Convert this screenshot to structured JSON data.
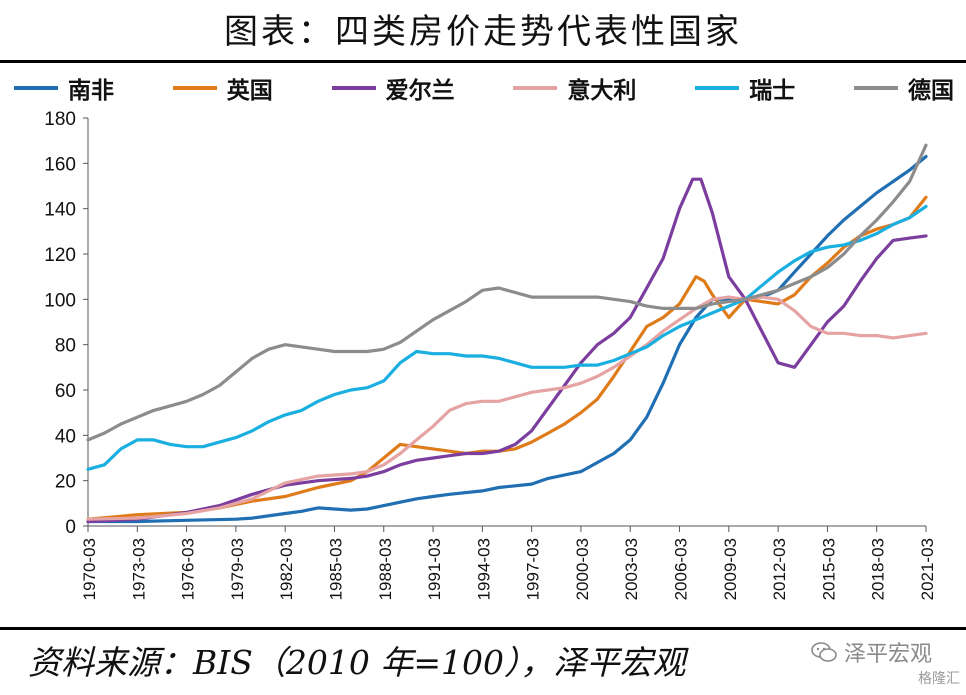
{
  "title": "图表：四类房价走势代表性国家",
  "source": "资料来源：BIS（2010 年=100），泽平宏观",
  "watermark": {
    "text": "泽平宏观",
    "icon": "wechat-icon",
    "badge": "格隆汇"
  },
  "chart_data": {
    "type": "line",
    "title": "图表：四类房价走势代表性国家",
    "xlabel": "",
    "ylabel": "",
    "xlim": [
      1970.0,
      2021.0
    ],
    "ylim": [
      0,
      180
    ],
    "yticks": [
      0,
      20,
      40,
      60,
      80,
      100,
      120,
      140,
      160,
      180
    ],
    "xtick_labels": [
      "1970-03",
      "1973-03",
      "1976-03",
      "1979-03",
      "1982-03",
      "1985-03",
      "1988-03",
      "1991-03",
      "1994-03",
      "1997-03",
      "2000-03",
      "2003-03",
      "2006-03",
      "2009-03",
      "2012-03",
      "2015-03",
      "2018-03",
      "2021-03"
    ],
    "legend_position": "top",
    "series": [
      {
        "name": "南非",
        "color": "#1f6fb2",
        "points": [
          [
            1970,
            2
          ],
          [
            1973,
            2
          ],
          [
            1976,
            2.5
          ],
          [
            1979,
            3
          ],
          [
            1980,
            3.5
          ],
          [
            1982,
            5.5
          ],
          [
            1983,
            6.5
          ],
          [
            1984,
            8
          ],
          [
            1985,
            7.5
          ],
          [
            1986,
            7
          ],
          [
            1987,
            7.5
          ],
          [
            1988,
            9
          ],
          [
            1990,
            12
          ],
          [
            1991,
            13
          ],
          [
            1992,
            14
          ],
          [
            1994,
            15.5
          ],
          [
            1995,
            17
          ],
          [
            1997,
            18.5
          ],
          [
            1998,
            21
          ],
          [
            2000,
            24
          ],
          [
            2001,
            28
          ],
          [
            2002,
            32
          ],
          [
            2003,
            38
          ],
          [
            2004,
            48
          ],
          [
            2005,
            63
          ],
          [
            2006,
            80
          ],
          [
            2007,
            92
          ],
          [
            2008,
            100
          ],
          [
            2009,
            100
          ],
          [
            2010,
            100
          ],
          [
            2011,
            101
          ],
          [
            2012,
            104
          ],
          [
            2013,
            112
          ],
          [
            2014,
            120
          ],
          [
            2015,
            128
          ],
          [
            2016,
            135
          ],
          [
            2017,
            141
          ],
          [
            2018,
            147
          ],
          [
            2019,
            152
          ],
          [
            2020,
            157
          ],
          [
            2021,
            163
          ]
        ]
      },
      {
        "name": "英国",
        "color": "#e07b1a",
        "points": [
          [
            1970,
            3
          ],
          [
            1973,
            5
          ],
          [
            1976,
            6
          ],
          [
            1978,
            8
          ],
          [
            1980,
            11
          ],
          [
            1982,
            13
          ],
          [
            1983,
            15
          ],
          [
            1984,
            17
          ],
          [
            1986,
            20
          ],
          [
            1987,
            24
          ],
          [
            1988,
            30
          ],
          [
            1989,
            36
          ],
          [
            1990,
            35
          ],
          [
            1991,
            34
          ],
          [
            1992,
            33
          ],
          [
            1993,
            32
          ],
          [
            1994,
            33
          ],
          [
            1995,
            33
          ],
          [
            1996,
            34
          ],
          [
            1997,
            37
          ],
          [
            1998,
            41
          ],
          [
            1999,
            45
          ],
          [
            2000,
            50
          ],
          [
            2001,
            56
          ],
          [
            2002,
            66
          ],
          [
            2003,
            77
          ],
          [
            2004,
            88
          ],
          [
            2005,
            92
          ],
          [
            2006,
            98
          ],
          [
            2007,
            110
          ],
          [
            2007.5,
            108
          ],
          [
            2008,
            102
          ],
          [
            2009,
            92
          ],
          [
            2010,
            100
          ],
          [
            2011,
            99
          ],
          [
            2012,
            98
          ],
          [
            2013,
            102
          ],
          [
            2014,
            110
          ],
          [
            2015,
            116
          ],
          [
            2016,
            123
          ],
          [
            2017,
            128
          ],
          [
            2018,
            131
          ],
          [
            2019,
            133
          ],
          [
            2020,
            136
          ],
          [
            2021,
            145
          ]
        ]
      },
      {
        "name": "爱尔兰",
        "color": "#7b3d9e",
        "points": [
          [
            1970,
            2
          ],
          [
            1973,
            3
          ],
          [
            1976,
            6
          ],
          [
            1978,
            9
          ],
          [
            1980,
            14
          ],
          [
            1982,
            18
          ],
          [
            1984,
            20
          ],
          [
            1986,
            21
          ],
          [
            1987,
            22
          ],
          [
            1988,
            24
          ],
          [
            1989,
            27
          ],
          [
            1990,
            29
          ],
          [
            1991,
            30
          ],
          [
            1992,
            31
          ],
          [
            1993,
            32
          ],
          [
            1994,
            32
          ],
          [
            1995,
            33
          ],
          [
            1996,
            36
          ],
          [
            1997,
            42
          ],
          [
            1998,
            52
          ],
          [
            1999,
            62
          ],
          [
            2000,
            72
          ],
          [
            2001,
            80
          ],
          [
            2002,
            85
          ],
          [
            2003,
            92
          ],
          [
            2004,
            105
          ],
          [
            2005,
            118
          ],
          [
            2006,
            140
          ],
          [
            2006.8,
            153
          ],
          [
            2007.3,
            153
          ],
          [
            2008,
            138
          ],
          [
            2009,
            110
          ],
          [
            2010,
            100
          ],
          [
            2011,
            86
          ],
          [
            2012,
            72
          ],
          [
            2013,
            70
          ],
          [
            2014,
            80
          ],
          [
            2015,
            90
          ],
          [
            2016,
            97
          ],
          [
            2017,
            108
          ],
          [
            2018,
            118
          ],
          [
            2019,
            126
          ],
          [
            2020,
            127
          ],
          [
            2021,
            128
          ]
        ]
      },
      {
        "name": "意大利",
        "color": "#e6a3a3",
        "points": [
          [
            1970,
            3
          ],
          [
            1973,
            3.5
          ],
          [
            1976,
            5.5
          ],
          [
            1978,
            8
          ],
          [
            1980,
            12
          ],
          [
            1982,
            19
          ],
          [
            1984,
            22
          ],
          [
            1986,
            23
          ],
          [
            1987,
            24
          ],
          [
            1988,
            27
          ],
          [
            1989,
            32
          ],
          [
            1990,
            38
          ],
          [
            1991,
            44
          ],
          [
            1992,
            51
          ],
          [
            1993,
            54
          ],
          [
            1994,
            55
          ],
          [
            1995,
            55
          ],
          [
            1996,
            57
          ],
          [
            1997,
            59
          ],
          [
            1998,
            60
          ],
          [
            1999,
            61
          ],
          [
            2000,
            63
          ],
          [
            2001,
            66
          ],
          [
            2002,
            70
          ],
          [
            2003,
            75
          ],
          [
            2004,
            80
          ],
          [
            2005,
            86
          ],
          [
            2006,
            91
          ],
          [
            2007,
            96
          ],
          [
            2008,
            100
          ],
          [
            2009,
            101
          ],
          [
            2010,
            100
          ],
          [
            2011,
            101
          ],
          [
            2012,
            100
          ],
          [
            2013,
            95
          ],
          [
            2014,
            88
          ],
          [
            2015,
            85
          ],
          [
            2016,
            85
          ],
          [
            2017,
            84
          ],
          [
            2018,
            84
          ],
          [
            2019,
            83
          ],
          [
            2020,
            84
          ],
          [
            2021,
            85
          ]
        ]
      },
      {
        "name": "瑞士",
        "color": "#19afe0",
        "points": [
          [
            1970,
            25
          ],
          [
            1971,
            27
          ],
          [
            1972,
            34
          ],
          [
            1973,
            38
          ],
          [
            1974,
            38
          ],
          [
            1975,
            36
          ],
          [
            1976,
            35
          ],
          [
            1977,
            35
          ],
          [
            1978,
            37
          ],
          [
            1979,
            39
          ],
          [
            1980,
            42
          ],
          [
            1981,
            46
          ],
          [
            1982,
            49
          ],
          [
            1983,
            51
          ],
          [
            1984,
            55
          ],
          [
            1985,
            58
          ],
          [
            1986,
            60
          ],
          [
            1987,
            61
          ],
          [
            1988,
            64
          ],
          [
            1989,
            72
          ],
          [
            1990,
            77
          ],
          [
            1991,
            76
          ],
          [
            1992,
            76
          ],
          [
            1993,
            75
          ],
          [
            1994,
            75
          ],
          [
            1995,
            74
          ],
          [
            1996,
            72
          ],
          [
            1997,
            70
          ],
          [
            1998,
            70
          ],
          [
            1999,
            70
          ],
          [
            2000,
            71
          ],
          [
            2001,
            71
          ],
          [
            2002,
            73
          ],
          [
            2003,
            76
          ],
          [
            2004,
            79
          ],
          [
            2005,
            84
          ],
          [
            2006,
            88
          ],
          [
            2007,
            91
          ],
          [
            2008,
            94
          ],
          [
            2009,
            97
          ],
          [
            2010,
            100
          ],
          [
            2011,
            106
          ],
          [
            2012,
            112
          ],
          [
            2013,
            117
          ],
          [
            2014,
            121
          ],
          [
            2015,
            123
          ],
          [
            2016,
            124
          ],
          [
            2017,
            126
          ],
          [
            2018,
            129
          ],
          [
            2019,
            133
          ],
          [
            2020,
            136
          ],
          [
            2021,
            141
          ]
        ]
      },
      {
        "name": "德国",
        "color": "#8c8c8c",
        "points": [
          [
            1970,
            38
          ],
          [
            1971,
            41
          ],
          [
            1972,
            45
          ],
          [
            1973,
            48
          ],
          [
            1974,
            51
          ],
          [
            1975,
            53
          ],
          [
            1976,
            55
          ],
          [
            1977,
            58
          ],
          [
            1978,
            62
          ],
          [
            1979,
            68
          ],
          [
            1980,
            74
          ],
          [
            1981,
            78
          ],
          [
            1982,
            80
          ],
          [
            1983,
            79
          ],
          [
            1984,
            78
          ],
          [
            1985,
            77
          ],
          [
            1986,
            77
          ],
          [
            1987,
            77
          ],
          [
            1988,
            78
          ],
          [
            1989,
            81
          ],
          [
            1990,
            86
          ],
          [
            1991,
            91
          ],
          [
            1992,
            95
          ],
          [
            1993,
            99
          ],
          [
            1994,
            104
          ],
          [
            1995,
            105
          ],
          [
            1996,
            103
          ],
          [
            1997,
            101
          ],
          [
            1998,
            101
          ],
          [
            1999,
            101
          ],
          [
            2000,
            101
          ],
          [
            2001,
            101
          ],
          [
            2002,
            100
          ],
          [
            2003,
            99
          ],
          [
            2004,
            97
          ],
          [
            2005,
            96
          ],
          [
            2006,
            96
          ],
          [
            2007,
            96
          ],
          [
            2008,
            98
          ],
          [
            2009,
            99
          ],
          [
            2010,
            100
          ],
          [
            2011,
            102
          ],
          [
            2012,
            104
          ],
          [
            2013,
            107
          ],
          [
            2014,
            110
          ],
          [
            2015,
            114
          ],
          [
            2016,
            120
          ],
          [
            2017,
            128
          ],
          [
            2018,
            135
          ],
          [
            2019,
            143
          ],
          [
            2020,
            152
          ],
          [
            2021,
            168
          ]
        ]
      }
    ]
  }
}
